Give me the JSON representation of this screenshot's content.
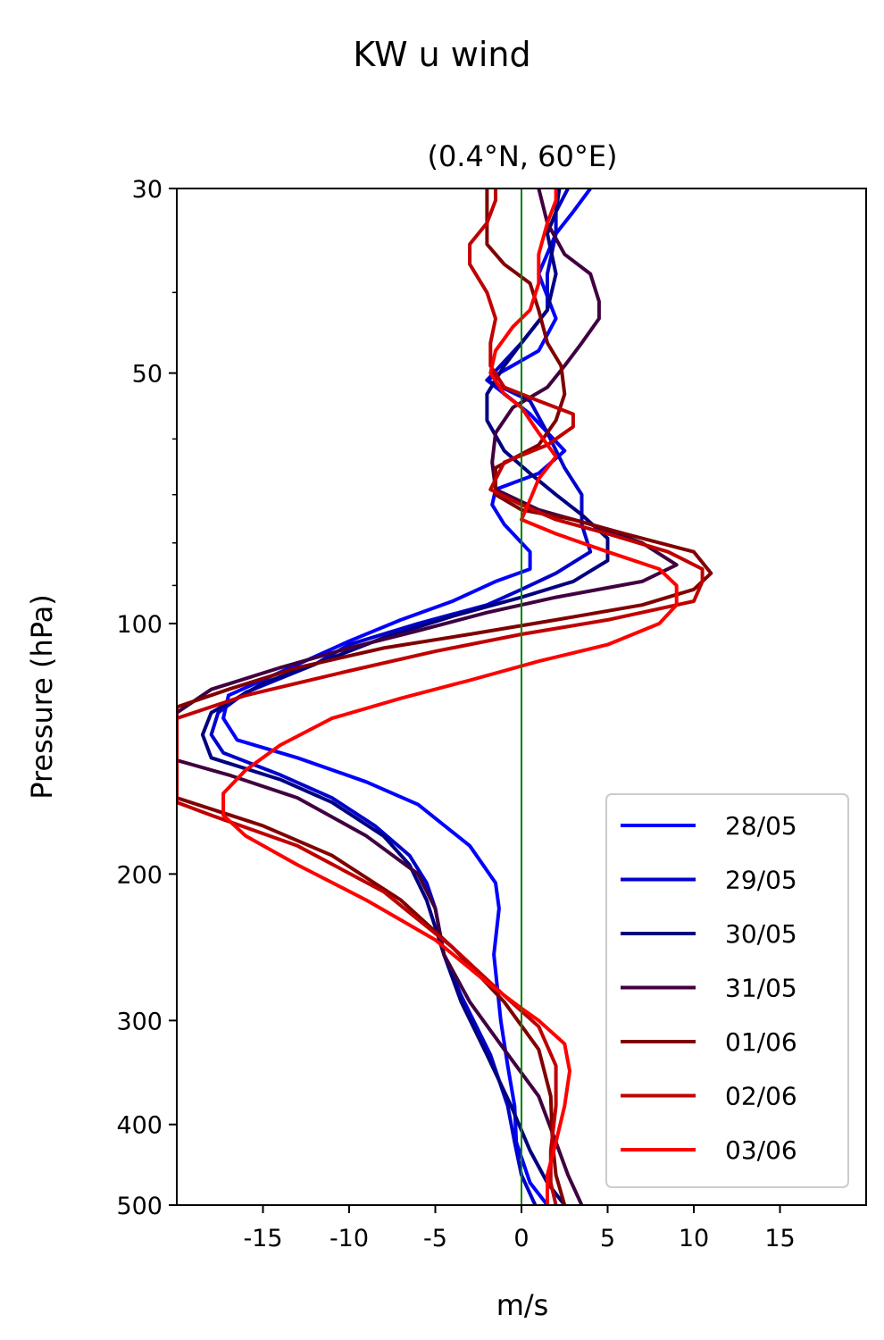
{
  "chart_data": {
    "type": "line",
    "title": "KW u wind",
    "subtitle": "(0.4°N, 60°E)",
    "xlabel": "m/s",
    "ylabel": "Pressure (hPa)",
    "xlim": [
      -20,
      20
    ],
    "ylim": [
      500,
      30
    ],
    "yscale": "log",
    "xticks": [
      -15,
      -10,
      -5,
      0,
      5,
      10,
      15
    ],
    "xtick_labels": [
      "-15",
      "-10",
      "-5",
      "0",
      "5",
      "10",
      "15"
    ],
    "yticks": [
      30,
      50,
      100,
      200,
      300,
      400,
      500
    ],
    "ytick_labels": [
      "30",
      "50",
      "100",
      "200",
      "300",
      "400",
      "500"
    ],
    "yminor_ticks": [
      40,
      60,
      70,
      80,
      90
    ],
    "zero_line": {
      "x": 0,
      "color": "#008000"
    },
    "grid": false,
    "legend_position": "lower-right",
    "series": [
      {
        "name": "28/05",
        "color": "#0000ff",
        "points": [
          [
            1.5,
            500
          ],
          [
            0.5,
            470
          ],
          [
            -0.3,
            420
          ],
          [
            -0.4,
            380
          ],
          [
            -0.8,
            340
          ],
          [
            -1.2,
            300
          ],
          [
            -1.6,
            250
          ],
          [
            -1.3,
            220
          ],
          [
            -1.5,
            205
          ],
          [
            -3,
            185
          ],
          [
            -6,
            165
          ],
          [
            -9,
            155
          ],
          [
            -13,
            145
          ],
          [
            -16.5,
            138
          ],
          [
            -17.3,
            130
          ],
          [
            -17,
            122
          ],
          [
            -13,
            112
          ],
          [
            -10,
            105
          ],
          [
            -7,
            99
          ],
          [
            -4,
            94
          ],
          [
            -1.5,
            89
          ],
          [
            0.5,
            86
          ],
          [
            0.5,
            82
          ],
          [
            -1,
            76
          ],
          [
            -1.7,
            72
          ],
          [
            -1.5,
            69
          ],
          [
            1,
            66
          ],
          [
            2.5,
            62
          ],
          [
            0.5,
            56
          ],
          [
            -2,
            51
          ],
          [
            1,
            47
          ],
          [
            2,
            43
          ],
          [
            1,
            38
          ],
          [
            2,
            34
          ],
          [
            3,
            32
          ],
          [
            4,
            30
          ]
        ]
      },
      {
        "name": "29/05",
        "color": "#0000cc",
        "points": [
          [
            0.8,
            500
          ],
          [
            0,
            460
          ],
          [
            -0.4,
            420
          ],
          [
            -0.8,
            380
          ],
          [
            -1.8,
            330
          ],
          [
            -3.5,
            280
          ],
          [
            -4.5,
            250
          ],
          [
            -5,
            220
          ],
          [
            -5.5,
            205
          ],
          [
            -6.5,
            190
          ],
          [
            -8.5,
            175
          ],
          [
            -11,
            162
          ],
          [
            -14,
            152
          ],
          [
            -17.3,
            143
          ],
          [
            -18,
            136
          ],
          [
            -17.6,
            128
          ],
          [
            -16,
            121
          ],
          [
            -12,
            112
          ],
          [
            -10,
            106
          ],
          [
            -6,
            100
          ],
          [
            -2,
            95
          ],
          [
            0,
            91
          ],
          [
            2,
            87
          ],
          [
            4,
            82
          ],
          [
            3.5,
            76
          ],
          [
            3.5,
            70
          ],
          [
            2.5,
            65
          ],
          [
            1.5,
            59
          ],
          [
            0.5,
            54
          ],
          [
            -2,
            51
          ],
          [
            0,
            46
          ],
          [
            1.5,
            42
          ],
          [
            1.5,
            38
          ],
          [
            2,
            34
          ],
          [
            2,
            32
          ],
          [
            2.7,
            30
          ]
        ]
      },
      {
        "name": "30/05",
        "color": "#000080",
        "points": [
          [
            2.5,
            500
          ],
          [
            1.5,
            470
          ],
          [
            0.5,
            430
          ],
          [
            -0.6,
            380
          ],
          [
            -2,
            330
          ],
          [
            -3.5,
            285
          ],
          [
            -4.5,
            250
          ],
          [
            -5.5,
            215
          ],
          [
            -6.5,
            195
          ],
          [
            -8,
            180
          ],
          [
            -11,
            164
          ],
          [
            -14,
            154
          ],
          [
            -18,
            145
          ],
          [
            -18.5,
            136
          ],
          [
            -18,
            128
          ],
          [
            -15,
            118
          ],
          [
            -11,
            110
          ],
          [
            -8,
            104
          ],
          [
            -4,
            98
          ],
          [
            0,
            93
          ],
          [
            3,
            89
          ],
          [
            5,
            84
          ],
          [
            5,
            79
          ],
          [
            3.5,
            74
          ],
          [
            2,
            70
          ],
          [
            0.5,
            66
          ],
          [
            -1,
            62
          ],
          [
            -2,
            57
          ],
          [
            -2,
            53
          ],
          [
            -1,
            49
          ],
          [
            0,
            46
          ],
          [
            1.5,
            42
          ],
          [
            2,
            38
          ],
          [
            1.5,
            34
          ],
          [
            2,
            32
          ],
          [
            2.2,
            30
          ]
        ]
      },
      {
        "name": "31/05",
        "color": "#400040",
        "points": [
          [
            3.5,
            500
          ],
          [
            2.7,
            460
          ],
          [
            2,
            420
          ],
          [
            1,
            370
          ],
          [
            -1,
            325
          ],
          [
            -3,
            285
          ],
          [
            -4.5,
            250
          ],
          [
            -5,
            220
          ],
          [
            -6,
            200
          ],
          [
            -9,
            180
          ],
          [
            -13,
            162
          ],
          [
            -17,
            152
          ],
          [
            -20,
            146
          ],
          [
            -20,
            128
          ],
          [
            -18,
            120
          ],
          [
            -14,
            113
          ],
          [
            -10,
            107
          ],
          [
            -6,
            102
          ],
          [
            -2,
            97
          ],
          [
            2,
            93
          ],
          [
            7,
            89
          ],
          [
            9,
            85
          ],
          [
            7,
            80
          ],
          [
            4,
            76
          ],
          [
            1,
            73
          ],
          [
            -1.5,
            69
          ],
          [
            -1.7,
            64
          ],
          [
            -1.5,
            59
          ],
          [
            -0.5,
            55
          ],
          [
            1.5,
            52
          ],
          [
            2.5,
            49
          ],
          [
            3.5,
            46
          ],
          [
            4.5,
            43
          ],
          [
            4.5,
            41
          ],
          [
            4,
            38
          ],
          [
            2.5,
            36
          ],
          [
            1.5,
            33
          ],
          [
            1,
            30
          ]
        ]
      },
      {
        "name": "01/06",
        "color": "#800000",
        "points": [
          [
            2.5,
            500
          ],
          [
            2,
            460
          ],
          [
            1.8,
            420
          ],
          [
            1.7,
            370
          ],
          [
            1,
            325
          ],
          [
            -1,
            285
          ],
          [
            -4,
            245
          ],
          [
            -7,
            215
          ],
          [
            -11,
            190
          ],
          [
            -15,
            175
          ],
          [
            -20,
            162
          ],
          [
            -20,
            126
          ],
          [
            -17,
            120
          ],
          [
            -13,
            113
          ],
          [
            -8,
            107
          ],
          [
            -3,
            103
          ],
          [
            2,
            99
          ],
          [
            7,
            95
          ],
          [
            10,
            91
          ],
          [
            11,
            87
          ],
          [
            10,
            82
          ],
          [
            6,
            78
          ],
          [
            3,
            75
          ],
          [
            0,
            73
          ],
          [
            -1.5,
            70
          ],
          [
            -1.5,
            65
          ],
          [
            1,
            61
          ],
          [
            2,
            57
          ],
          [
            2.5,
            53
          ],
          [
            2.3,
            49
          ],
          [
            1.5,
            46
          ],
          [
            1,
            42
          ],
          [
            0.5,
            39
          ],
          [
            -1,
            37
          ],
          [
            -2,
            35
          ],
          [
            -2,
            32
          ],
          [
            -2,
            30
          ]
        ]
      },
      {
        "name": "02/06",
        "color": "#c00000",
        "points": [
          [
            2,
            500
          ],
          [
            1.7,
            470
          ],
          [
            1.7,
            430
          ],
          [
            2,
            380
          ],
          [
            2,
            340
          ],
          [
            1,
            305
          ],
          [
            -1,
            280
          ],
          [
            -4,
            245
          ],
          [
            -8,
            210
          ],
          [
            -13,
            185
          ],
          [
            -18,
            170
          ],
          [
            -20,
            164
          ],
          [
            -20,
            130
          ],
          [
            -16,
            122
          ],
          [
            -10,
            114
          ],
          [
            -5,
            108
          ],
          [
            0,
            103
          ],
          [
            5,
            99
          ],
          [
            10,
            94
          ],
          [
            10.5,
            89
          ],
          [
            10.5,
            86
          ],
          [
            8.5,
            82
          ],
          [
            5,
            78
          ],
          [
            2,
            75
          ],
          [
            0,
            72
          ],
          [
            -1.8,
            69
          ],
          [
            -1,
            64
          ],
          [
            1.5,
            61
          ],
          [
            3,
            58
          ],
          [
            3,
            56
          ],
          [
            1,
            54
          ],
          [
            -1,
            52
          ],
          [
            -1.8,
            49
          ],
          [
            -1.8,
            46
          ],
          [
            -1.5,
            43
          ],
          [
            -2,
            40
          ],
          [
            -3,
            37
          ],
          [
            -3,
            35
          ],
          [
            -2,
            33
          ],
          [
            -1.5,
            31
          ],
          [
            -1.5,
            30
          ]
        ]
      },
      {
        "name": "03/06",
        "color": "#ff0000",
        "points": [
          [
            1.5,
            500
          ],
          [
            1.5,
            460
          ],
          [
            2,
            420
          ],
          [
            2.5,
            380
          ],
          [
            2.8,
            345
          ],
          [
            2.5,
            320
          ],
          [
            1,
            300
          ],
          [
            0,
            290
          ],
          [
            -2,
            270
          ],
          [
            -5,
            240
          ],
          [
            -9,
            215
          ],
          [
            -13,
            195
          ],
          [
            -16,
            180
          ],
          [
            -17.3,
            170
          ],
          [
            -17.3,
            160
          ],
          [
            -16,
            150
          ],
          [
            -14,
            140
          ],
          [
            -11,
            130
          ],
          [
            -7,
            123
          ],
          [
            -3,
            117
          ],
          [
            1,
            111
          ],
          [
            5,
            106
          ],
          [
            8,
            100
          ],
          [
            9,
            95
          ],
          [
            9,
            90
          ],
          [
            8,
            86
          ],
          [
            5,
            82
          ],
          [
            2,
            78
          ],
          [
            0,
            75
          ],
          [
            0.5,
            71
          ],
          [
            1,
            67
          ],
          [
            2,
            63
          ],
          [
            1,
            59
          ],
          [
            0,
            55
          ],
          [
            -1,
            53
          ],
          [
            -1.8,
            50
          ],
          [
            -1.5,
            47
          ],
          [
            -0.5,
            44
          ],
          [
            0.5,
            42
          ],
          [
            1,
            39
          ],
          [
            1,
            36
          ],
          [
            1.5,
            33
          ],
          [
            2,
            31
          ],
          [
            2,
            30
          ]
        ]
      }
    ]
  }
}
